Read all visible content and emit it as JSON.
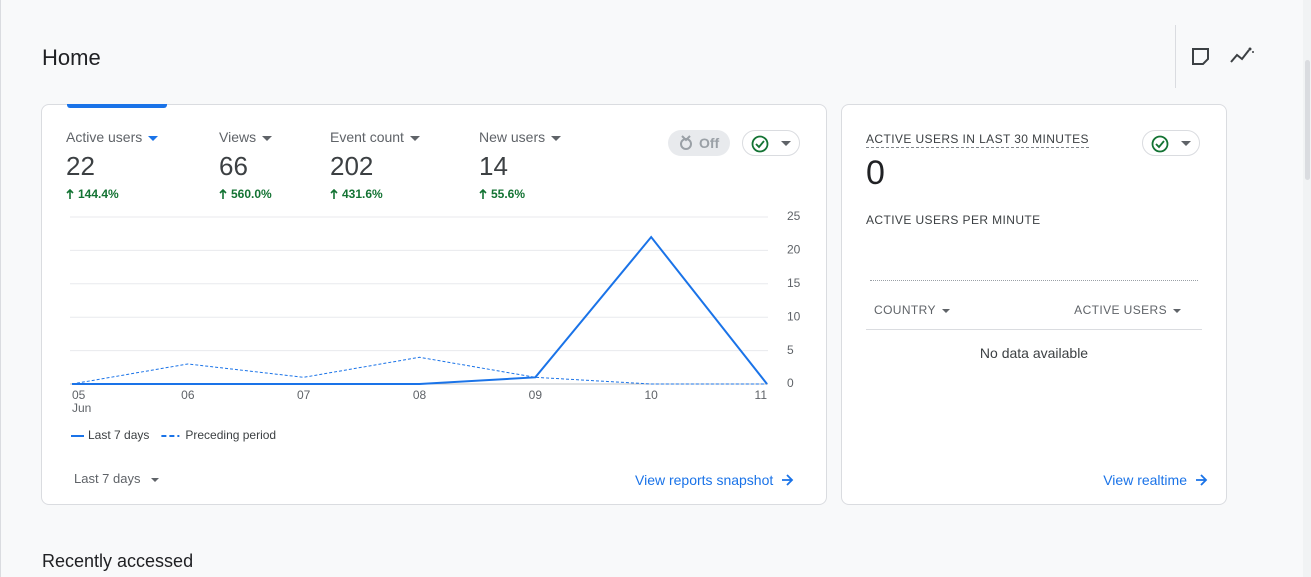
{
  "header": {
    "title": "Home"
  },
  "summary_card": {
    "metrics": [
      {
        "label": "Active users",
        "value": "22",
        "change": "144.4%"
      },
      {
        "label": "Views",
        "value": "66",
        "change": "560.0%"
      },
      {
        "label": "Event count",
        "value": "202",
        "change": "431.6%"
      },
      {
        "label": "New users",
        "value": "14",
        "change": "55.6%"
      }
    ],
    "toggle": "Off",
    "range_selector": "Last 7 days",
    "link": "View reports snapshot"
  },
  "chart_data": {
    "type": "line",
    "categories": [
      "05",
      "06",
      "07",
      "08",
      "09",
      "10",
      "11"
    ],
    "x_sublabel": "Jun",
    "series": [
      {
        "name": "Last 7 days",
        "color": "#1a73e8",
        "style": "solid",
        "values": [
          0,
          0,
          0,
          0,
          1,
          22,
          0
        ]
      },
      {
        "name": "Preceding period",
        "color": "#1a73e8",
        "style": "dashed",
        "values": [
          0,
          3,
          1,
          4,
          1,
          0,
          0
        ]
      }
    ],
    "ylim": [
      0,
      25
    ],
    "yticks": [
      0,
      5,
      10,
      15,
      20,
      25
    ],
    "grid": true,
    "y_axis_side": "right"
  },
  "realtime_card": {
    "title": "ACTIVE USERS IN LAST 30 MINUTES",
    "value": "0",
    "subtitle": "ACTIVE USERS PER MINUTE",
    "table": {
      "headers": [
        "COUNTRY",
        "ACTIVE USERS"
      ],
      "empty": "No data available"
    },
    "link": "View realtime"
  },
  "section": {
    "title": "Recently accessed"
  }
}
